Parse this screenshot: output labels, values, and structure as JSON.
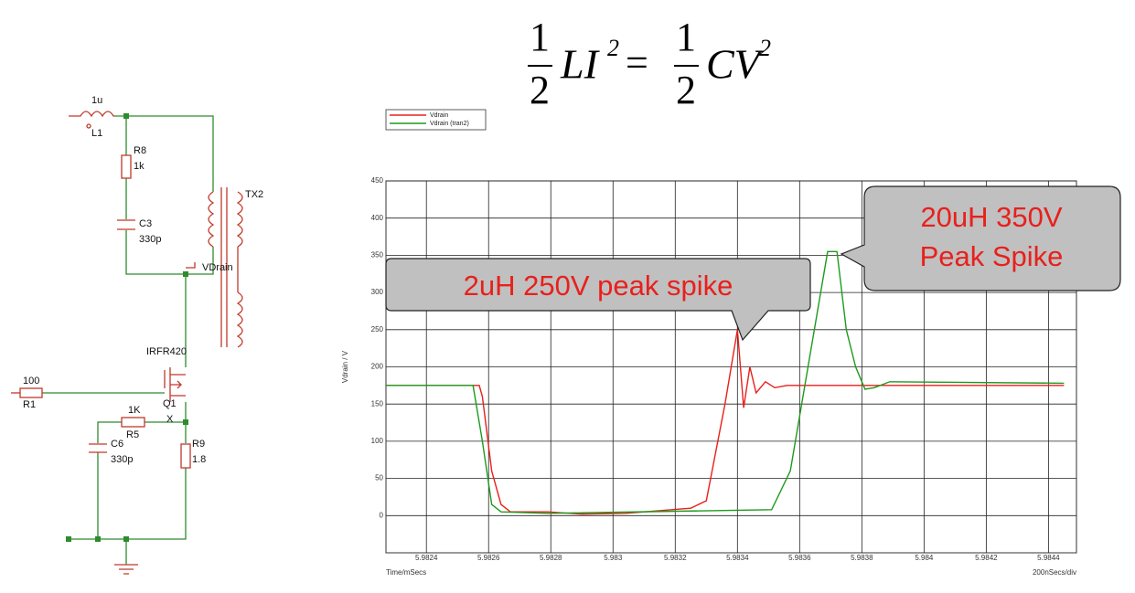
{
  "equation": {
    "lhs_numerator": "1",
    "lhs_denominator": "2",
    "lhs_term": "LI",
    "lhs_power": "2",
    "operator": "=",
    "rhs_numerator": "1",
    "rhs_denominator": "2",
    "rhs_term": "CV",
    "rhs_power": "2"
  },
  "schematic": {
    "labels": {
      "l1_value": "1u",
      "l1": "L1",
      "r8": "R8",
      "r8_value": "1k",
      "c3": "C3",
      "c3_value": "330p",
      "tx2": "TX2",
      "probe": "VDrain",
      "q1_part": "IRFR420",
      "q1": "Q1",
      "r1_value": "100",
      "r1": "R1",
      "r5_value": "1K",
      "r5": "R5",
      "node_x": "X",
      "c6": "C6",
      "c6_value": "330p",
      "r9": "R9",
      "r9_value": "1.8"
    }
  },
  "callouts": [
    "2uH 250V peak spike",
    [
      "20uH 350V",
      "Peak Spike"
    ]
  ],
  "chart_data": {
    "type": "line",
    "y_label": "Vdrain / V",
    "x_label": "Time/mSecs",
    "x_scale_label": "200nSecs/div",
    "xlim": [
      5.98227,
      5.98449
    ],
    "ylim": [
      -50,
      450
    ],
    "xticks": [
      5.9824,
      5.9826,
      5.9828,
      5.983,
      5.9832,
      5.9834,
      5.9836,
      5.9838,
      5.984,
      5.9842,
      5.9844
    ],
    "yticks": [
      0,
      50,
      100,
      150,
      200,
      250,
      300,
      350,
      400,
      450
    ],
    "grid": true,
    "legend": "top-left",
    "series": [
      {
        "name": "Vdrain",
        "color": "#e8201c",
        "x": [
          5.98227,
          5.98257,
          5.98258,
          5.98261,
          5.98264,
          5.98267,
          5.98279,
          5.9829,
          5.98304,
          5.98325,
          5.9833,
          5.98336,
          5.9834,
          5.98342,
          5.98344,
          5.98346,
          5.98349,
          5.98352,
          5.98356,
          5.98445
        ],
        "values": [
          175,
          175,
          160,
          60,
          15,
          5,
          5,
          2,
          3,
          10,
          20,
          150,
          250,
          145,
          200,
          165,
          180,
          172,
          175,
          175
        ]
      },
      {
        "name": "Vdrain (tran2)",
        "color": "#1e9a1e",
        "x": [
          5.98227,
          5.98255,
          5.98258,
          5.98261,
          5.98264,
          5.98279,
          5.98351,
          5.98357,
          5.98369,
          5.98372,
          5.98375,
          5.98378,
          5.98381,
          5.98384,
          5.98389,
          5.98445
        ],
        "values": [
          175,
          175,
          100,
          15,
          5,
          3,
          8,
          60,
          355,
          355,
          250,
          200,
          170,
          172,
          180,
          178
        ]
      }
    ]
  }
}
